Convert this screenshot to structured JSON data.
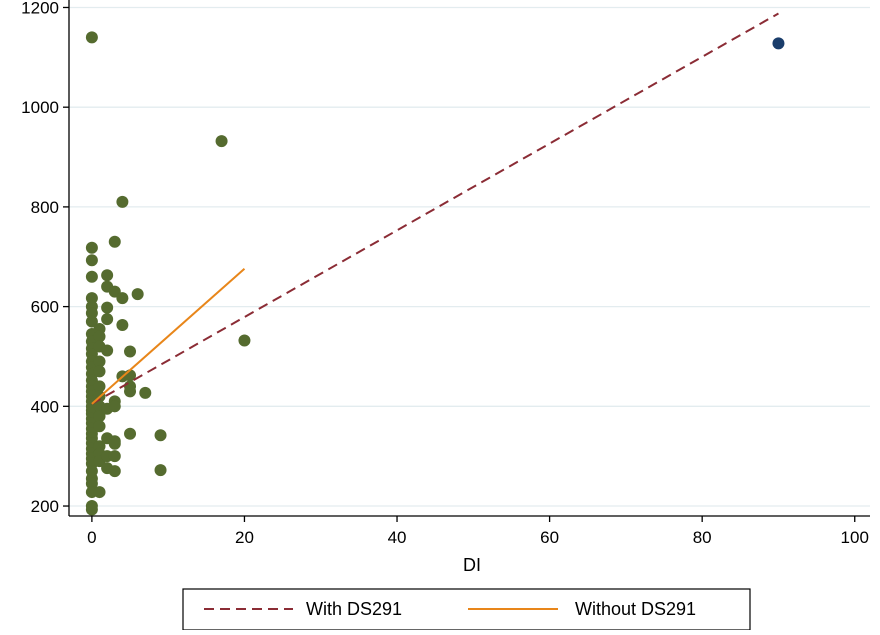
{
  "chart_data": {
    "type": "scatter",
    "xlabel": "DI",
    "ylabel": "",
    "xlim": [
      -3,
      102
    ],
    "ylim": [
      180,
      1215
    ],
    "xticks": [
      0,
      20,
      40,
      60,
      80,
      100
    ],
    "yticks": [
      200,
      400,
      600,
      800,
      1000,
      1200
    ],
    "grid": "horizontal",
    "legend_position": "bottom",
    "colors": {
      "points": "#556b2f",
      "highlight_point": "#1a3d6b",
      "with_line": "#8b2c35",
      "without_line": "#e8861a",
      "grid": "#e3ecef"
    },
    "series": [
      {
        "kind": "points",
        "points": [
          [
            0,
            1140
          ],
          [
            0,
            718
          ],
          [
            0,
            693
          ],
          [
            0,
            660
          ],
          [
            0,
            617
          ],
          [
            0,
            600
          ],
          [
            0,
            587
          ],
          [
            0,
            570
          ],
          [
            0,
            545
          ],
          [
            0,
            530
          ],
          [
            0,
            516
          ],
          [
            0,
            505
          ],
          [
            0,
            490
          ],
          [
            0,
            478
          ],
          [
            0,
            465
          ],
          [
            0,
            452
          ],
          [
            0,
            440
          ],
          [
            0,
            430
          ],
          [
            0,
            420
          ],
          [
            0,
            410
          ],
          [
            0,
            400
          ],
          [
            0,
            392
          ],
          [
            0,
            385
          ],
          [
            0,
            375
          ],
          [
            0,
            366
          ],
          [
            0,
            355
          ],
          [
            0,
            345
          ],
          [
            0,
            336
          ],
          [
            0,
            326
          ],
          [
            0,
            315
          ],
          [
            0,
            305
          ],
          [
            0,
            295
          ],
          [
            0,
            285
          ],
          [
            0,
            270
          ],
          [
            0,
            255
          ],
          [
            0,
            245
          ],
          [
            0,
            228
          ],
          [
            0,
            200
          ],
          [
            0,
            193
          ],
          [
            1,
            555
          ],
          [
            1,
            540
          ],
          [
            1,
            520
          ],
          [
            1,
            490
          ],
          [
            1,
            470
          ],
          [
            1,
            440
          ],
          [
            1,
            420
          ],
          [
            1,
            400
          ],
          [
            1,
            380
          ],
          [
            1,
            360
          ],
          [
            1,
            320
          ],
          [
            1,
            305
          ],
          [
            1,
            290
          ],
          [
            1,
            228
          ],
          [
            2,
            663
          ],
          [
            2,
            640
          ],
          [
            2,
            598
          ],
          [
            2,
            575
          ],
          [
            2,
            512
          ],
          [
            2,
            395
          ],
          [
            2,
            336
          ],
          [
            2,
            300
          ],
          [
            2,
            276
          ],
          [
            3,
            730
          ],
          [
            3,
            630
          ],
          [
            3,
            410
          ],
          [
            3,
            400
          ],
          [
            3,
            330
          ],
          [
            3,
            325
          ],
          [
            3,
            300
          ],
          [
            3,
            270
          ],
          [
            4,
            810
          ],
          [
            4,
            617
          ],
          [
            4,
            563
          ],
          [
            4,
            460
          ],
          [
            5,
            510
          ],
          [
            5,
            462
          ],
          [
            5,
            440
          ],
          [
            5,
            430
          ],
          [
            5,
            345
          ],
          [
            6,
            625
          ],
          [
            7,
            427
          ],
          [
            9,
            342
          ],
          [
            9,
            272
          ],
          [
            17,
            932
          ],
          [
            20,
            532
          ]
        ]
      },
      {
        "kind": "highlight",
        "points": [
          [
            90,
            1128
          ]
        ]
      },
      {
        "kind": "line",
        "name": "With DS291",
        "style": "dashed",
        "x": [
          0,
          90
        ],
        "y": [
          405,
          1188
        ]
      },
      {
        "kind": "line",
        "name": "Without DS291",
        "style": "solid",
        "x": [
          0,
          20
        ],
        "y": [
          405,
          676
        ]
      }
    ]
  }
}
